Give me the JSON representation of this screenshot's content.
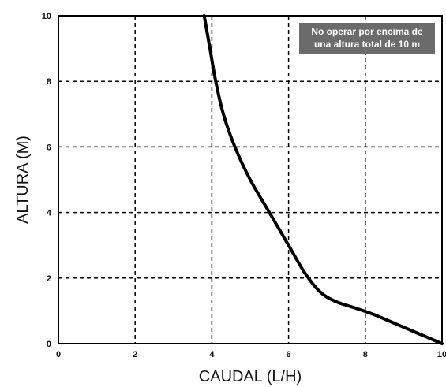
{
  "chart_data": {
    "type": "line",
    "xlabel": "CAUDAL (L/H)",
    "ylabel": "ALTURA (M)",
    "xlim": [
      0,
      10
    ],
    "ylim": [
      0,
      10
    ],
    "xticks": [
      "0",
      "2",
      "4",
      "6",
      "8",
      "10"
    ],
    "yticks": [
      "0",
      "2",
      "4",
      "6",
      "8",
      "10"
    ],
    "grid": true,
    "grid_style": "dashed",
    "annotation": {
      "lines": [
        "No operar por encima de",
        "una altura total de 10 m"
      ]
    },
    "series": [
      {
        "x": [
          3.8,
          3.95,
          4.1,
          4.3,
          4.6,
          5.0,
          5.5,
          6.0,
          6.4,
          6.8,
          7.2,
          7.7,
          8.2,
          8.8,
          9.4,
          10.0
        ],
        "y": [
          10.0,
          9.0,
          8.0,
          7.0,
          6.0,
          5.0,
          4.0,
          3.0,
          2.2,
          1.6,
          1.3,
          1.1,
          0.9,
          0.6,
          0.3,
          0.0
        ]
      }
    ]
  },
  "colors": {
    "curve": "#000000",
    "grid": "#000000",
    "annotation_bg": "#6b6b6b",
    "annotation_text": "#ffffff"
  }
}
